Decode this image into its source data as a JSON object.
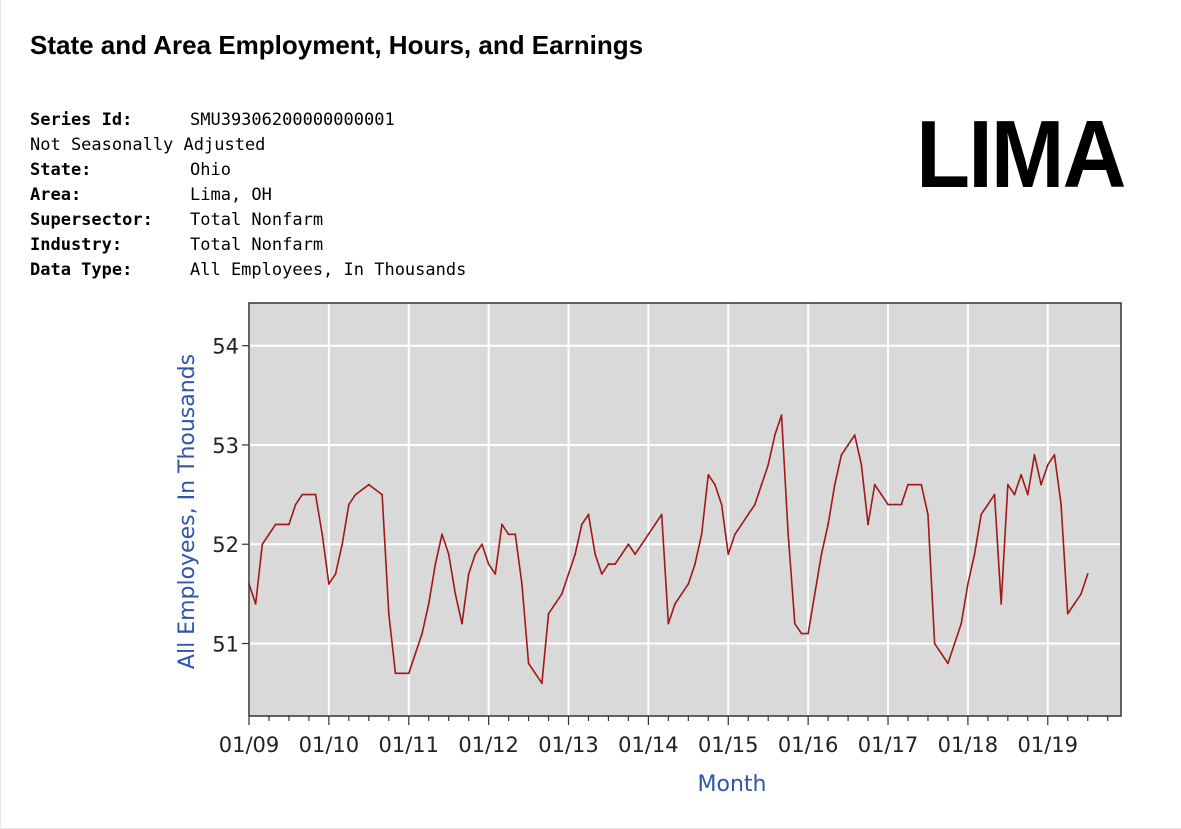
{
  "page": {
    "title": "State and Area Employment, Hours, and Earnings",
    "badge": "LIMA"
  },
  "series_info": {
    "series_id": {
      "label": "Series Id:",
      "value": "SMU39306200000000001"
    },
    "seasonal": "Not Seasonally Adjusted",
    "state": {
      "label": "State:",
      "value": "Ohio"
    },
    "area": {
      "label": "Area:",
      "value": "Lima, OH"
    },
    "supersector": {
      "label": "Supersector:",
      "value": "Total Nonfarm"
    },
    "industry": {
      "label": "Industry:",
      "value": "Total Nonfarm"
    },
    "data_type": {
      "label": "Data Type:",
      "value": "All Employees, In Thousands"
    }
  },
  "chart_data": {
    "type": "line",
    "title": "",
    "xlabel": "Month",
    "ylabel": "All Employees, In Thousands",
    "x_start": "2009-01",
    "xlim_months": [
      0,
      131
    ],
    "ylim": [
      50.27,
      54.43
    ],
    "grid": true,
    "line_color": "#a01818",
    "plot_bg": "#d9d9d9",
    "xticks": [
      {
        "label": "01/09",
        "month": 0
      },
      {
        "label": "01/10",
        "month": 12
      },
      {
        "label": "01/11",
        "month": 24
      },
      {
        "label": "01/12",
        "month": 36
      },
      {
        "label": "01/13",
        "month": 48
      },
      {
        "label": "01/14",
        "month": 60
      },
      {
        "label": "01/15",
        "month": 72
      },
      {
        "label": "01/16",
        "month": 84
      },
      {
        "label": "01/17",
        "month": 96
      },
      {
        "label": "01/18",
        "month": 108
      },
      {
        "label": "01/19",
        "month": 120
      }
    ],
    "yticks": [
      51,
      52,
      53,
      54
    ],
    "series": [
      {
        "name": "Lima, OH Total Nonfarm",
        "values": [
          51.6,
          51.4,
          52.0,
          52.1,
          52.2,
          52.2,
          52.2,
          52.4,
          52.5,
          52.5,
          52.5,
          52.1,
          51.6,
          51.7,
          52.0,
          52.4,
          52.5,
          52.55,
          52.6,
          52.55,
          52.5,
          51.3,
          50.7,
          50.7,
          50.7,
          50.9,
          51.1,
          51.4,
          51.8,
          52.1,
          51.9,
          51.5,
          51.2,
          51.7,
          51.9,
          52.0,
          51.8,
          51.7,
          52.2,
          52.1,
          52.1,
          51.6,
          50.8,
          50.7,
          50.6,
          51.3,
          51.4,
          51.5,
          51.7,
          51.9,
          52.2,
          52.3,
          51.9,
          51.7,
          51.8,
          51.8,
          51.9,
          52.0,
          51.9,
          52.0,
          52.1,
          52.2,
          52.3,
          51.2,
          51.4,
          51.5,
          51.6,
          51.8,
          52.1,
          52.7,
          52.6,
          52.4,
          51.9,
          52.1,
          52.2,
          52.3,
          52.4,
          52.6,
          52.8,
          53.1,
          53.3,
          52.1,
          51.2,
          51.1,
          51.1,
          51.5,
          51.9,
          52.2,
          52.6,
          52.9,
          53.0,
          53.1,
          52.8,
          52.2,
          52.6,
          52.5,
          52.4,
          52.4,
          52.4,
          52.6,
          52.6,
          52.6,
          52.3,
          51.0,
          50.9,
          50.8,
          51.0,
          51.2,
          51.6,
          51.9,
          52.3,
          52.4,
          52.5,
          51.4,
          52.6,
          52.5,
          52.7,
          52.5,
          52.9,
          52.6,
          52.8,
          52.9,
          52.4,
          51.3,
          51.4,
          51.5,
          51.7
        ]
      }
    ]
  }
}
